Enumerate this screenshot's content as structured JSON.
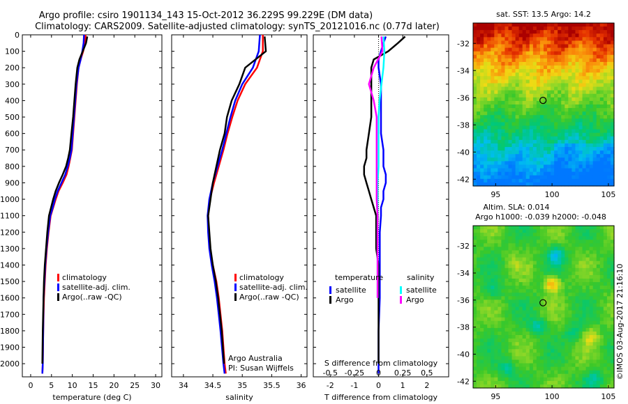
{
  "header": {
    "line1": "Argo profile: csiro 1901134_143 15-Oct-2012 36.229S 99.229E (DM data)",
    "line2": "Climatology: CARS2009. Satellite-adjusted climatology: synTS_20121016.nc (0.77d later)"
  },
  "colors": {
    "climatology": "#ff0000",
    "satellite": "#0000ff",
    "argo": "#000000",
    "salinity_satellite": "#00ffff",
    "salinity_argo": "#ff00ff"
  },
  "credit": {
    "org": "Argo Australia",
    "pi": "PI: Susan Wijffels",
    "stamp": "©IMOS 03-Aug-2017 21:16:10"
  },
  "chart_data": [
    {
      "type": "line",
      "xlabel": "temperature (deg C)",
      "xlim": [
        -2,
        31.5
      ],
      "xticks": [
        "0",
        "5",
        "10",
        "15",
        "20",
        "25",
        "30"
      ],
      "ylim": [
        2080,
        0
      ],
      "yticks": [
        "0",
        "100",
        "200",
        "300",
        "400",
        "500",
        "600",
        "700",
        "800",
        "900",
        "1000",
        "1100",
        "1200",
        "1300",
        "1400",
        "1500",
        "1600",
        "1700",
        "1800",
        "1900",
        "2000"
      ],
      "legend": [
        "climatology",
        "satellite-adj. clim.",
        "Argo(..raw -QC)"
      ],
      "series": [
        {
          "name": "climatology",
          "x": [
            13.2,
            13.0,
            12.6,
            12.0,
            11.5,
            11.1,
            10.8,
            10.5,
            10.2,
            9.9,
            9.5,
            9.1,
            8.6,
            7.7,
            6.7,
            6.0,
            5.4,
            4.8,
            4.3,
            3.9,
            3.6,
            3.4,
            3.2,
            3.0,
            2.9,
            2.8
          ],
          "y": [
            0,
            50,
            100,
            150,
            200,
            300,
            400,
            500,
            600,
            700,
            750,
            800,
            850,
            900,
            950,
            1000,
            1050,
            1100,
            1200,
            1300,
            1400,
            1500,
            1600,
            1800,
            2000,
            2060
          ]
        },
        {
          "name": "satellite-adj. clim.",
          "x": [
            12.8,
            12.7,
            12.4,
            12.0,
            11.5,
            11.0,
            10.7,
            10.4,
            10.1,
            9.8,
            9.4,
            8.9,
            8.3,
            7.4,
            6.5,
            5.8,
            5.3,
            4.7,
            4.2,
            3.8,
            3.5,
            3.3,
            3.1,
            3.0,
            2.9,
            2.8
          ],
          "y": [
            0,
            50,
            100,
            150,
            200,
            300,
            400,
            500,
            600,
            700,
            750,
            800,
            850,
            900,
            950,
            1000,
            1050,
            1100,
            1200,
            1300,
            1400,
            1500,
            1600,
            1800,
            2000,
            2060
          ]
        },
        {
          "name": "Argo(..raw -QC)",
          "x": [
            13.6,
            13.3,
            12.5,
            11.7,
            11.2,
            10.8,
            10.5,
            10.2,
            9.8,
            9.4,
            9.0,
            8.5,
            7.7,
            6.8,
            6.0,
            5.4,
            4.9,
            4.4,
            4.0,
            3.7,
            3.4,
            3.2,
            3.1,
            2.9,
            2.8
          ],
          "y": [
            10,
            50,
            100,
            150,
            200,
            300,
            400,
            500,
            600,
            700,
            750,
            800,
            850,
            900,
            950,
            1000,
            1050,
            1100,
            1200,
            1300,
            1400,
            1500,
            1600,
            1800,
            2000
          ]
        }
      ]
    },
    {
      "type": "line",
      "xlabel": "salinity",
      "xlim": [
        33.8,
        36.1
      ],
      "xticks": [
        "34",
        "34.5",
        "35",
        "35.5",
        "36"
      ],
      "ylim": [
        2080,
        0
      ],
      "legend": [
        "climatology",
        "satellite-adj. clim.",
        "Argo(..raw -QC)"
      ],
      "series": [
        {
          "name": "climatology",
          "x": [
            35.35,
            35.35,
            35.25,
            35.05,
            34.92,
            34.83,
            34.75,
            34.68,
            34.6,
            34.52,
            34.45,
            34.42,
            34.43,
            34.45,
            34.5,
            34.56,
            34.6,
            34.63,
            34.66,
            34.7,
            34.72
          ],
          "y": [
            0,
            100,
            200,
            300,
            400,
            500,
            600,
            700,
            800,
            900,
            1000,
            1100,
            1200,
            1300,
            1400,
            1500,
            1600,
            1700,
            1800,
            2000,
            2060
          ]
        },
        {
          "name": "satellite-adj. clim.",
          "x": [
            35.3,
            35.28,
            35.18,
            35.0,
            34.88,
            34.8,
            34.73,
            34.66,
            34.58,
            34.5,
            34.44,
            34.41,
            34.42,
            34.44,
            34.48,
            34.53,
            34.57,
            34.6,
            34.63,
            34.68,
            34.7
          ],
          "y": [
            0,
            100,
            200,
            300,
            400,
            500,
            600,
            700,
            800,
            900,
            1000,
            1100,
            1200,
            1300,
            1400,
            1500,
            1600,
            1700,
            1800,
            2000,
            2060
          ]
        },
        {
          "name": "Argo(..raw -QC)",
          "x": [
            35.38,
            35.4,
            35.05,
            34.95,
            34.82,
            34.74,
            34.7,
            34.62,
            34.56,
            34.5,
            34.46,
            34.42,
            34.44,
            34.46,
            34.5,
            34.55,
            34.59,
            34.62,
            34.65,
            34.69
          ],
          "y": [
            10,
            100,
            200,
            300,
            400,
            500,
            600,
            700,
            800,
            900,
            1000,
            1100,
            1200,
            1300,
            1400,
            1500,
            1600,
            1700,
            1800,
            2000
          ]
        }
      ]
    },
    {
      "type": "line",
      "xlabel": "T difference from climatology",
      "x2label": "S difference from climatology",
      "xlim": [
        -2.7,
        2.9
      ],
      "xticks": [
        "-2",
        "-1",
        "0",
        "1",
        "2"
      ],
      "x2lim": [
        -0.675,
        0.725
      ],
      "x2ticks": [
        "-0.5",
        "-0.25",
        "0",
        "0.25",
        "0.5"
      ],
      "ylim": [
        2080,
        0
      ],
      "legend": {
        "temperature": "temperature",
        "salinity": "salinity",
        "satellite": "satellite",
        "argo": "Argo"
      },
      "series": [
        {
          "name": "temperature satellite",
          "axis": "T",
          "x": [
            0.3,
            0.2,
            0.1,
            0.0,
            0.0,
            0.1,
            0.1,
            0.1,
            0.1,
            0.2,
            0.2,
            0.2,
            0.3,
            0.3,
            0.2,
            0.2,
            0.1,
            0.1,
            0.05,
            0.05,
            0.05,
            0.05,
            0.05,
            0.0,
            0.0,
            0.0
          ],
          "y": [
            10,
            50,
            100,
            150,
            200,
            300,
            400,
            500,
            600,
            700,
            750,
            800,
            850,
            900,
            950,
            1000,
            1050,
            1100,
            1200,
            1300,
            1400,
            1500,
            1600,
            1800,
            2000,
            2060
          ]
        },
        {
          "name": "temperature Argo",
          "axis": "T",
          "x": [
            1.1,
            0.8,
            0.4,
            -0.2,
            -0.3,
            -0.3,
            -0.3,
            -0.3,
            -0.4,
            -0.5,
            -0.5,
            -0.6,
            -0.6,
            -0.5,
            -0.4,
            -0.3,
            -0.2,
            -0.1,
            -0.1,
            -0.1,
            0.0,
            0.0,
            0.0,
            0.0,
            0.0
          ],
          "y": [
            10,
            50,
            100,
            150,
            200,
            300,
            400,
            500,
            600,
            700,
            750,
            800,
            850,
            900,
            950,
            1000,
            1050,
            1100,
            1200,
            1300,
            1400,
            1500,
            1600,
            1800,
            2000
          ]
        },
        {
          "name": "salinity satellite",
          "axis": "S",
          "x": [
            0.05,
            0.06,
            0.05,
            0.03,
            0.01,
            0.0,
            0.0,
            0.0,
            0.0,
            -0.01,
            -0.01,
            -0.01,
            -0.01,
            -0.01,
            -0.01,
            -0.01,
            -0.01
          ],
          "y": [
            10,
            100,
            200,
            300,
            400,
            500,
            600,
            700,
            800,
            900,
            1000,
            1100,
            1200,
            1300,
            1400,
            1500,
            1600
          ]
        },
        {
          "name": "salinity Argo",
          "axis": "S",
          "x": [
            0.03,
            0.04,
            -0.05,
            -0.1,
            -0.05,
            -0.02,
            -0.02,
            -0.02,
            -0.02,
            -0.02,
            -0.02,
            -0.01,
            -0.01,
            -0.01,
            -0.01,
            -0.01,
            -0.01
          ],
          "y": [
            10,
            100,
            200,
            300,
            400,
            500,
            600,
            700,
            800,
            900,
            1000,
            1100,
            1200,
            1300,
            1400,
            1500,
            1600
          ]
        }
      ]
    },
    {
      "type": "heatmap",
      "title": "sat. SST: 13.5 Argo: 14.2",
      "xticks": [
        "95",
        "100",
        "105"
      ],
      "yticks": [
        "-32",
        "-34",
        "-36",
        "-38",
        "-40",
        "-42"
      ],
      "xlim": [
        93,
        105.5
      ],
      "ylim": [
        -42.5,
        -30.5
      ],
      "marker": {
        "lon": 99.2,
        "lat": -36.2
      }
    },
    {
      "type": "heatmap",
      "title_line1": "Altim. SLA: 0.014",
      "title_line2": "Argo h1000: -0.039 h2000: -0.048",
      "xticks": [
        "95",
        "100",
        "105"
      ],
      "yticks": [
        "-32",
        "-34",
        "-36",
        "-38",
        "-40",
        "-42"
      ],
      "xlim": [
        93,
        105.5
      ],
      "ylim": [
        -42.5,
        -30.5
      ],
      "marker": {
        "lon": 99.2,
        "lat": -36.2
      }
    }
  ]
}
